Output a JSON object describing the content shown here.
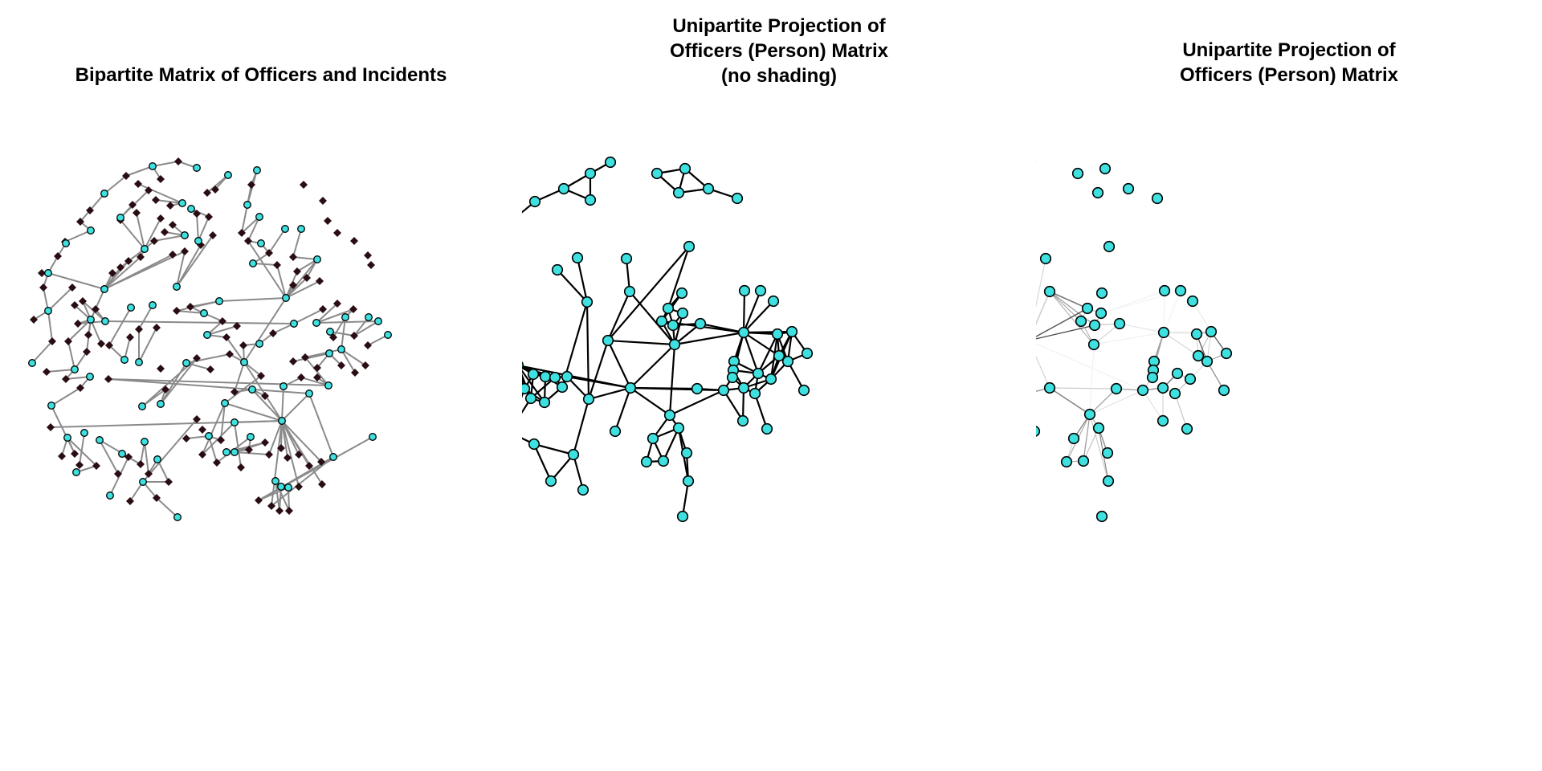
{
  "figure": {
    "panels": [
      {
        "id": "bipartite",
        "title_lines": [
          "Bipartite Matrix of Officers and Incidents"
        ],
        "node_types": [
          {
            "name": "officer",
            "shape": "circle",
            "color": "#3ee0e0"
          },
          {
            "name": "incident",
            "shape": "diamond",
            "color": "#2a0d12"
          }
        ],
        "edge_color": "#8a8a8a"
      },
      {
        "id": "projection-no-shading",
        "title_lines": [
          "Unipartite Projection of",
          "Officers (Person) Matrix",
          "(no shading)"
        ],
        "node_color": "#3ee0e0",
        "edge_color": "#000000",
        "edge_shading": false
      },
      {
        "id": "projection-shaded",
        "title_lines": [
          "Unipartite Projection of",
          "Officers (Person) Matrix"
        ],
        "node_color": "#3ee0e0",
        "edge_color": "#000000",
        "edge_shading": true
      }
    ]
  }
}
